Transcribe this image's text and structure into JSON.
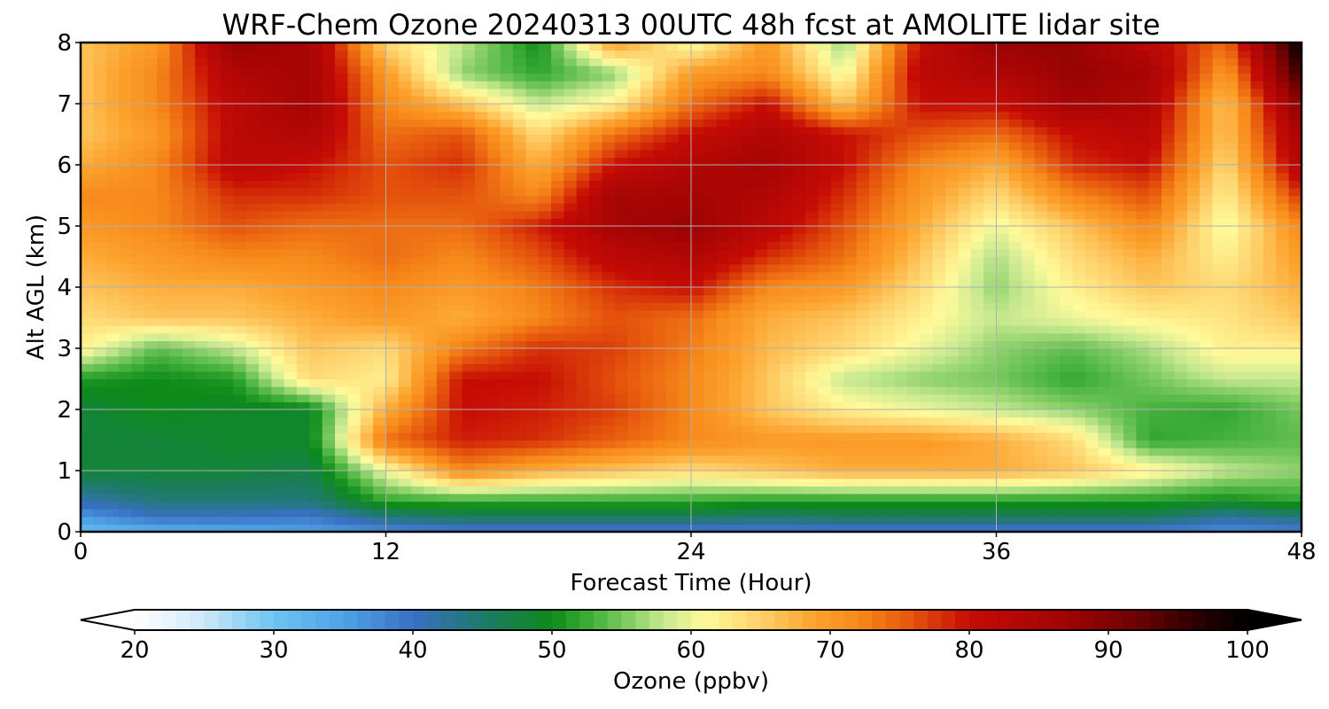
{
  "chart_data": {
    "type": "heatmap",
    "title": "WRF-Chem Ozone  20240313 00UTC 48h fcst at AMOLITE lidar site",
    "xlabel": "Forecast Time (Hour)",
    "ylabel": "Alt AGL (km)",
    "xlim": [
      0,
      48
    ],
    "ylim": [
      0,
      8
    ],
    "x_ticks": [
      0,
      12,
      24,
      36,
      48
    ],
    "y_ticks": [
      0,
      1,
      2,
      3,
      4,
      5,
      6,
      7,
      8
    ],
    "grid": true,
    "x": [
      0,
      3,
      6,
      9,
      12,
      15,
      18,
      21,
      24,
      27,
      30,
      33,
      36,
      39,
      42,
      45,
      48
    ],
    "y": [
      0,
      0.25,
      0.5,
      1,
      1.5,
      2,
      2.5,
      3,
      3.5,
      4,
      4.5,
      5,
      5.5,
      6,
      6.5,
      7,
      7.5,
      8
    ],
    "z": [
      [
        31,
        33,
        34,
        35,
        37,
        38,
        38,
        38,
        38,
        38,
        38,
        38,
        38,
        38,
        38,
        37,
        38
      ],
      [
        36,
        40,
        40,
        39,
        44,
        46,
        46,
        46,
        46,
        45,
        46,
        46,
        46,
        46,
        46,
        42,
        44
      ],
      [
        41,
        44,
        44,
        44,
        52,
        52,
        52,
        52,
        52,
        51,
        51,
        51,
        51,
        51,
        51,
        50,
        52
      ],
      [
        48,
        48,
        48,
        47,
        60,
        72,
        68,
        66,
        64,
        66,
        68,
        68,
        68,
        66,
        62,
        58,
        56
      ],
      [
        48,
        48,
        49,
        49,
        74,
        79,
        78,
        75,
        72,
        70,
        70,
        70,
        68,
        64,
        52,
        53,
        54
      ],
      [
        48,
        50,
        49,
        49,
        68,
        80,
        79,
        77,
        72,
        66,
        62,
        60,
        58,
        56,
        53,
        52,
        55
      ],
      [
        51,
        50,
        51,
        64,
        62,
        80,
        80,
        76,
        72,
        66,
        58,
        56,
        55,
        52,
        55,
        58,
        58
      ],
      [
        62,
        54,
        58,
        66,
        64,
        73,
        78,
        77,
        73,
        67,
        64,
        60,
        56,
        54,
        57,
        62,
        62
      ],
      [
        64,
        66,
        66,
        68,
        70,
        68,
        72,
        76,
        74,
        68,
        66,
        62,
        58,
        60,
        62,
        63,
        66
      ],
      [
        66,
        68,
        68,
        70,
        72,
        70,
        73,
        78,
        80,
        72,
        70,
        64,
        56,
        62,
        66,
        64,
        68
      ],
      [
        68,
        70,
        72,
        72,
        74,
        72,
        76,
        82,
        84,
        78,
        74,
        66,
        57,
        64,
        68,
        62,
        70
      ],
      [
        70,
        72,
        76,
        74,
        74,
        74,
        79,
        86,
        88,
        82,
        76,
        68,
        60,
        66,
        72,
        60,
        72
      ],
      [
        72,
        72,
        78,
        78,
        76,
        76,
        72,
        86,
        86,
        84,
        78,
        70,
        64,
        72,
        76,
        62,
        78
      ],
      [
        68,
        72,
        82,
        80,
        76,
        78,
        68,
        80,
        84,
        86,
        80,
        72,
        68,
        78,
        80,
        64,
        84
      ],
      [
        66,
        70,
        82,
        84,
        74,
        76,
        64,
        74,
        80,
        84,
        80,
        76,
        74,
        80,
        82,
        66,
        86
      ],
      [
        66,
        72,
        82,
        86,
        72,
        66,
        58,
        62,
        74,
        80,
        66,
        80,
        80,
        86,
        84,
        66,
        90
      ],
      [
        66,
        72,
        84,
        86,
        70,
        56,
        52,
        56,
        70,
        72,
        60,
        82,
        84,
        88,
        86,
        70,
        96
      ],
      [
        66,
        70,
        88,
        86,
        64,
        58,
        50,
        70,
        60,
        70,
        56,
        80,
        88,
        88,
        82,
        74,
        100
      ]
    ],
    "colorbar": {
      "label": "Ozone  (ppbv)",
      "min": 20,
      "max": 100,
      "ticks": [
        20,
        30,
        40,
        50,
        60,
        70,
        80,
        90,
        100
      ],
      "extend": "both",
      "stops": [
        {
          "v": 20,
          "c": "#ffffff"
        },
        {
          "v": 25,
          "c": "#cde8f8"
        },
        {
          "v": 30,
          "c": "#6cc4f2"
        },
        {
          "v": 35,
          "c": "#4ea3e6"
        },
        {
          "v": 40,
          "c": "#3a70c4"
        },
        {
          "v": 45,
          "c": "#1e7a6a"
        },
        {
          "v": 50,
          "c": "#0d8a1a"
        },
        {
          "v": 53,
          "c": "#45b23c"
        },
        {
          "v": 56,
          "c": "#8ed26a"
        },
        {
          "v": 58,
          "c": "#c6e890"
        },
        {
          "v": 61,
          "c": "#fffa9a"
        },
        {
          "v": 65,
          "c": "#fed06a"
        },
        {
          "v": 69,
          "c": "#fca12c"
        },
        {
          "v": 72,
          "c": "#f78a1a"
        },
        {
          "v": 76,
          "c": "#e4520c"
        },
        {
          "v": 80,
          "c": "#c60b05"
        },
        {
          "v": 87,
          "c": "#a00404"
        },
        {
          "v": 92,
          "c": "#6e0202"
        },
        {
          "v": 96,
          "c": "#300000"
        },
        {
          "v": 100,
          "c": "#000000"
        }
      ]
    }
  }
}
